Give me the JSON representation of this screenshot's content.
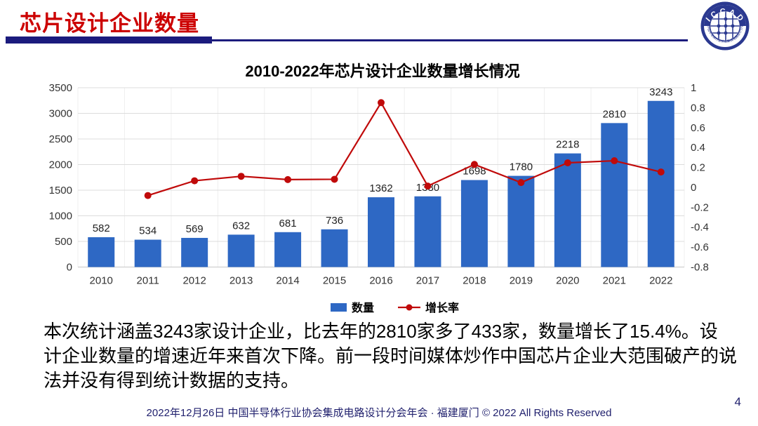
{
  "header": {
    "title": "芯片设计企业数量"
  },
  "logo": {
    "text": "ICCAD",
    "ring_text": "中国半导体行业协会集成电路设计分会",
    "color": "#2b3990"
  },
  "chart_data": {
    "type": "bar",
    "title": "2010-2022年芯片设计企业数量增长情况",
    "categories": [
      "2010",
      "2011",
      "2012",
      "2013",
      "2014",
      "2015",
      "2016",
      "2017",
      "2018",
      "2019",
      "2020",
      "2021",
      "2022"
    ],
    "series": [
      {
        "name": "数量",
        "type": "bar",
        "axis": "left",
        "color": "#2e68c4",
        "values": [
          582,
          534,
          569,
          632,
          681,
          736,
          1362,
          1380,
          1698,
          1780,
          2218,
          2810,
          3243
        ]
      },
      {
        "name": "增长率",
        "type": "line",
        "axis": "right",
        "color": "#c00a0a",
        "values": [
          null,
          -0.082,
          0.066,
          0.111,
          0.078,
          0.081,
          0.85,
          0.013,
          0.23,
          0.048,
          0.246,
          0.267,
          0.154
        ]
      }
    ],
    "left_axis": {
      "min": 0,
      "max": 3500,
      "step": 500
    },
    "right_axis": {
      "min": -0.8,
      "max": 1,
      "step": 0.2
    },
    "grid": true,
    "legend_position": "bottom",
    "colors": {
      "grid_h": "#dcdcdc",
      "grid_v": "#efefef",
      "axis": "#c8c8c8",
      "tick_text": "#333333",
      "bar_label": "#222222",
      "title": "#000000"
    }
  },
  "body": {
    "lines": [
      "本次统计涵盖3243家设计企业，比去年的2810家多了433家，数量增长了15.4%。设",
      "计企业数量的增速近年来首次下降。前一段时间媒体炒作中国芯片企业大范围破产的说",
      "法并没有得到统计数据的支持。"
    ]
  },
  "footer": {
    "text": "2022年12月26日 中国半导体行业协会集成电路设计分会年会 · 福建厦门 © 2022 All Rights Reserved",
    "page_number": "4"
  }
}
